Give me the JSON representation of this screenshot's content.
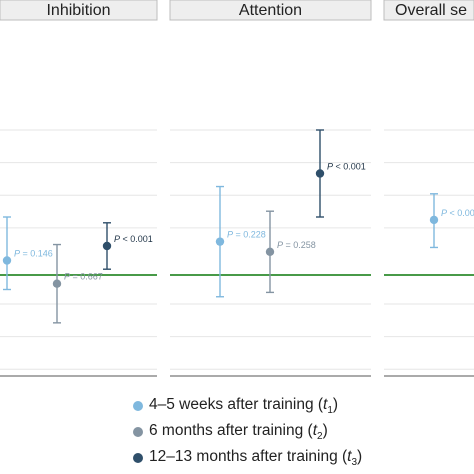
{
  "chart_data": {
    "type": "errorbar",
    "reference_line": 0,
    "panels": [
      {
        "title": "Inhibition",
        "points": [
          {
            "series": "t1",
            "estimate": 0.1,
            "ci_low": -0.1,
            "ci_high": 0.4,
            "p_label": "P = 0.146"
          },
          {
            "series": "t2",
            "estimate": -0.06,
            "ci_low": -0.33,
            "ci_high": 0.21,
            "p_label": "P = 0.667"
          },
          {
            "series": "t3",
            "estimate": 0.2,
            "ci_low": 0.04,
            "ci_high": 0.36,
            "p_label": "P < 0.001"
          }
        ]
      },
      {
        "title": "Attention",
        "points": [
          {
            "series": "t1",
            "estimate": 0.23,
            "ci_low": -0.15,
            "ci_high": 0.61,
            "p_label": "P = 0.228"
          },
          {
            "series": "t2",
            "estimate": 0.16,
            "ci_low": -0.12,
            "ci_high": 0.44,
            "p_label": "P = 0.258"
          },
          {
            "series": "t3",
            "estimate": 0.7,
            "ci_low": 0.4,
            "ci_high": 1.0,
            "p_label": "P < 0.001"
          }
        ]
      },
      {
        "title": "Overall se",
        "points": [
          {
            "series": "t1",
            "estimate": 0.38,
            "ci_low": 0.19,
            "ci_high": 0.56,
            "p_label": "P < 0.00"
          }
        ]
      }
    ],
    "legend": [
      {
        "key": "t1",
        "label": "4–5 weeks after training (",
        "sym": "t",
        "sub": "1",
        "close": ")",
        "color": "#7fb8de"
      },
      {
        "key": "t2",
        "label": "6 months after training (",
        "sym": "t",
        "sub": "2",
        "close": ")",
        "color": "#8494a2"
      },
      {
        "key": "t3",
        "label": "12–13 months after training (",
        "sym": "t",
        "sub": "3",
        "close": ")",
        "color": "#2f4f6a"
      }
    ],
    "grid": true,
    "reference_line_color": "#2e8b2e"
  }
}
